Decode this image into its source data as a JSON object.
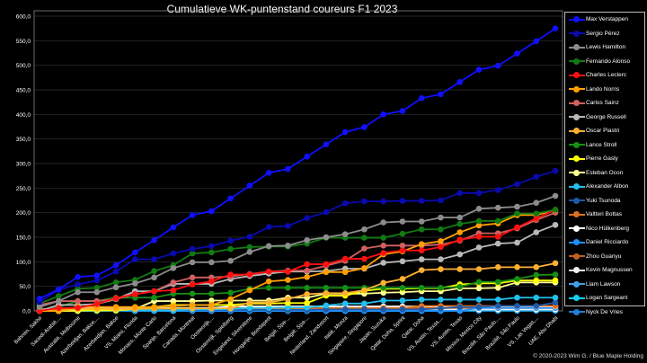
{
  "chart_data": {
    "type": "line",
    "title": "Cumulatieve WK-puntenstand coureurs F1 2023",
    "xlabel": "",
    "ylabel": "",
    "ylim": [
      0,
      600
    ],
    "yticks": [
      "0,0",
      "50,0",
      "100,0",
      "150,0",
      "200,0",
      "250,0",
      "300,0",
      "350,0",
      "400,0",
      "450,0",
      "500,0",
      "550,0",
      "600,0"
    ],
    "grid": "horizontal",
    "legend_position": "right",
    "categories": [
      "Bahrein, Sakhir",
      "Saoedi-Arabië,...",
      "Australië, Melbourne",
      "Azerbeidjan, Bakoe,...",
      "Azerbeidjan, Bakoe",
      "VS, Miami, Florida",
      "Monaco, Monte Carlo",
      "Spanje, Barcelona",
      "Canada, Montreal",
      "Oostenrijk,...",
      "Oostenrijk, Spielberg",
      "Engeland, Silverstone",
      "Hongarije, Boedapest",
      "België, Spa-...",
      "België, Spa-...",
      "Nederland, Zandvoort",
      "Italië, Monza",
      "Singapore, Singapore",
      "Japan, Suzuka",
      "Qatar, Doha, Sprint",
      "Qatar, Doha",
      "VS, Austin, Texas,...",
      "VS, Austin, Texas",
      "Mexico, Mexico City",
      "Brazilië, São Paulo,...",
      "Brazilië, São Paulo",
      "VS, Las Vegas,...",
      "UAE, Abu Dhabi"
    ],
    "series": [
      {
        "name": "Max Verstappen",
        "color": "#1010ff",
        "values": [
          25,
          44,
          69,
          72,
          93,
          119,
          144,
          170,
          195,
          203,
          229,
          255,
          281,
          289,
          314,
          339,
          364,
          374,
          400,
          407,
          433,
          441,
          466,
          491,
          499,
          524,
          549,
          575
        ]
      },
      {
        "name": "Sergio Pérez",
        "color": "#0a0ab0",
        "values": [
          18,
          43,
          54,
          62,
          80,
          105,
          105,
          117,
          126,
          132,
          143,
          151,
          171,
          173,
          189,
          201,
          219,
          223,
          223,
          224,
          224,
          225,
          240,
          240,
          246,
          258,
          273,
          285
        ]
      },
      {
        "name": "Lewis Hamilton",
        "color": "#8c8c8c",
        "values": [
          8,
          20,
          38,
          38,
          48,
          56,
          68,
          87,
          99,
          99,
          102,
          120,
          132,
          133,
          144,
          150,
          156,
          166,
          180,
          182,
          182,
          190,
          190,
          208,
          210,
          212,
          220,
          234
        ]
      },
      {
        "name": "Fernando Alonso",
        "color": "#127a12",
        "values": [
          15,
          30,
          45,
          47,
          58,
          63,
          81,
          93,
          117,
          119,
          126,
          130,
          131,
          131,
          137,
          149,
          149,
          149,
          149,
          157,
          166,
          166,
          177,
          183,
          183,
          198,
          198,
          206
        ]
      },
      {
        "name": "Charles Leclerc",
        "color": "#ff1010",
        "values": [
          0,
          6,
          6,
          14,
          26,
          34,
          40,
          42,
          54,
          60,
          74,
          74,
          80,
          80,
          95,
          95,
          106,
          106,
          118,
          123,
          123,
          130,
          145,
          151,
          151,
          170,
          188,
          206
        ]
      },
      {
        "name": "Lando Norris",
        "color": "#ffa000",
        "values": [
          0,
          0,
          8,
          8,
          8,
          8,
          8,
          10,
          12,
          12,
          24,
          42,
          60,
          63,
          69,
          79,
          79,
          87,
          115,
          121,
          136,
          142,
          160,
          174,
          178,
          195,
          195,
          205
        ]
      },
      {
        "name": "Carlos Sainz",
        "color": "#d06060",
        "values": [
          12,
          20,
          20,
          20,
          24,
          34,
          40,
          58,
          68,
          68,
          70,
          75,
          80,
          82,
          82,
          92,
          102,
          127,
          133,
          133,
          133,
          135,
          143,
          158,
          158,
          168,
          185,
          200
        ]
      },
      {
        "name": "George Russell",
        "color": "#b8b8b8",
        "values": [
          0,
          12,
          12,
          14,
          24,
          40,
          40,
          55,
          55,
          55,
          65,
          71,
          76,
          80,
          80,
          81,
          86,
          86,
          98,
          101,
          105,
          105,
          115,
          129,
          137,
          139,
          160,
          175
        ]
      },
      {
        "name": "Oscar Piastri",
        "color": "#ffb030",
        "values": [
          0,
          0,
          4,
          4,
          4,
          4,
          5,
          5,
          5,
          5,
          5,
          17,
          17,
          24,
          34,
          36,
          36,
          42,
          57,
          65,
          83,
          85,
          85,
          85,
          89,
          89,
          89,
          97
        ]
      },
      {
        "name": "Lance Stroll",
        "color": "#159015",
        "values": [
          0,
          8,
          20,
          20,
          27,
          27,
          27,
          35,
          35,
          35,
          37,
          45,
          47,
          47,
          47,
          47,
          47,
          47,
          47,
          47,
          47,
          47,
          49,
          59,
          59,
          65,
          73,
          74
        ]
      },
      {
        "name": "Pierre Gasly",
        "color": "#ffff00",
        "values": [
          0,
          0,
          1,
          1,
          1,
          4,
          8,
          12,
          12,
          12,
          12,
          15,
          15,
          16,
          16,
          31,
          31,
          41,
          45,
          45,
          46,
          46,
          54,
          56,
          56,
          62,
          62,
          62
        ]
      },
      {
        "name": "Esteban Ocon",
        "color": "#ffff90",
        "values": [
          0,
          0,
          0,
          2,
          2,
          4,
          20,
          20,
          20,
          21,
          21,
          21,
          21,
          27,
          27,
          35,
          35,
          35,
          37,
          38,
          40,
          40,
          46,
          46,
          47,
          58,
          58,
          58
        ]
      },
      {
        "name": "Alexander Albon",
        "color": "#20c0f0",
        "values": [
          0,
          0,
          0,
          0,
          1,
          1,
          1,
          1,
          3,
          3,
          4,
          6,
          6,
          7,
          7,
          11,
          15,
          15,
          21,
          21,
          23,
          23,
          23,
          23,
          23,
          27,
          27,
          27
        ]
      },
      {
        "name": "Yuki Tsunoda",
        "color": "#1e5aa8",
        "values": [
          0,
          0,
          0,
          0,
          0,
          1,
          1,
          2,
          2,
          2,
          2,
          2,
          2,
          2,
          2,
          3,
          3,
          3,
          3,
          3,
          3,
          5,
          8,
          8,
          10,
          10,
          10,
          17
        ]
      },
      {
        "name": "Valtteri Bottas",
        "color": "#e07020",
        "values": [
          4,
          4,
          4,
          4,
          4,
          4,
          4,
          4,
          4,
          4,
          4,
          4,
          4,
          4,
          4,
          4,
          4,
          6,
          6,
          6,
          10,
          10,
          10,
          10,
          10,
          10,
          10,
          10
        ]
      },
      {
        "name": "Nico Hülkenberg",
        "color": "#ffffff",
        "values": [
          0,
          0,
          6,
          6,
          6,
          6,
          6,
          6,
          6,
          6,
          9,
          9,
          9,
          9,
          9,
          9,
          9,
          9,
          9,
          9,
          9,
          9,
          9,
          9,
          9,
          9,
          9,
          9
        ]
      },
      {
        "name": "Daniel Ricciardo",
        "color": "#1e90ff",
        "values": [
          0,
          0,
          0,
          0,
          0,
          0,
          0,
          0,
          0,
          0,
          0,
          0,
          0,
          0,
          0,
          0,
          0,
          0,
          0,
          0,
          0,
          0,
          0,
          6,
          6,
          6,
          6,
          6
        ]
      },
      {
        "name": "Zhou Guanyu",
        "color": "#c06020",
        "values": [
          2,
          4,
          4,
          4,
          4,
          4,
          4,
          6,
          6,
          6,
          6,
          6,
          6,
          6,
          6,
          6,
          6,
          6,
          6,
          6,
          6,
          6,
          6,
          6,
          6,
          6,
          6,
          6
        ]
      },
      {
        "name": "Kevin Magnussen",
        "color": "#f0f0f0",
        "values": [
          0,
          0,
          1,
          1,
          1,
          1,
          1,
          1,
          1,
          1,
          2,
          2,
          2,
          2,
          2,
          3,
          3,
          3,
          3,
          3,
          3,
          3,
          3,
          3,
          3,
          3,
          3,
          3
        ]
      },
      {
        "name": "Liam Lawson",
        "color": "#40a0e8",
        "values": [
          0,
          0,
          0,
          0,
          0,
          0,
          0,
          0,
          0,
          0,
          0,
          0,
          0,
          0,
          0,
          0,
          0,
          2,
          2,
          2,
          2,
          2,
          2,
          2,
          2,
          2,
          2,
          2
        ]
      },
      {
        "name": "Logan Sargeant",
        "color": "#10d0f0",
        "values": [
          0,
          0,
          0,
          0,
          0,
          0,
          0,
          0,
          0,
          0,
          0,
          0,
          0,
          0,
          0,
          0,
          0,
          0,
          0,
          0,
          0,
          0,
          1,
          1,
          1,
          1,
          1,
          1
        ]
      },
      {
        "name": "Nyck De Vries",
        "color": "#2080d8",
        "values": [
          0,
          0,
          0,
          0,
          0,
          0,
          0,
          0,
          0,
          0,
          0,
          0,
          0,
          0,
          0,
          0,
          0,
          0,
          0,
          0,
          0,
          0,
          0,
          0,
          0,
          0,
          0,
          0
        ]
      }
    ]
  },
  "copyright": "© 2020-2023 Wim G. / Blue Maple Holding"
}
